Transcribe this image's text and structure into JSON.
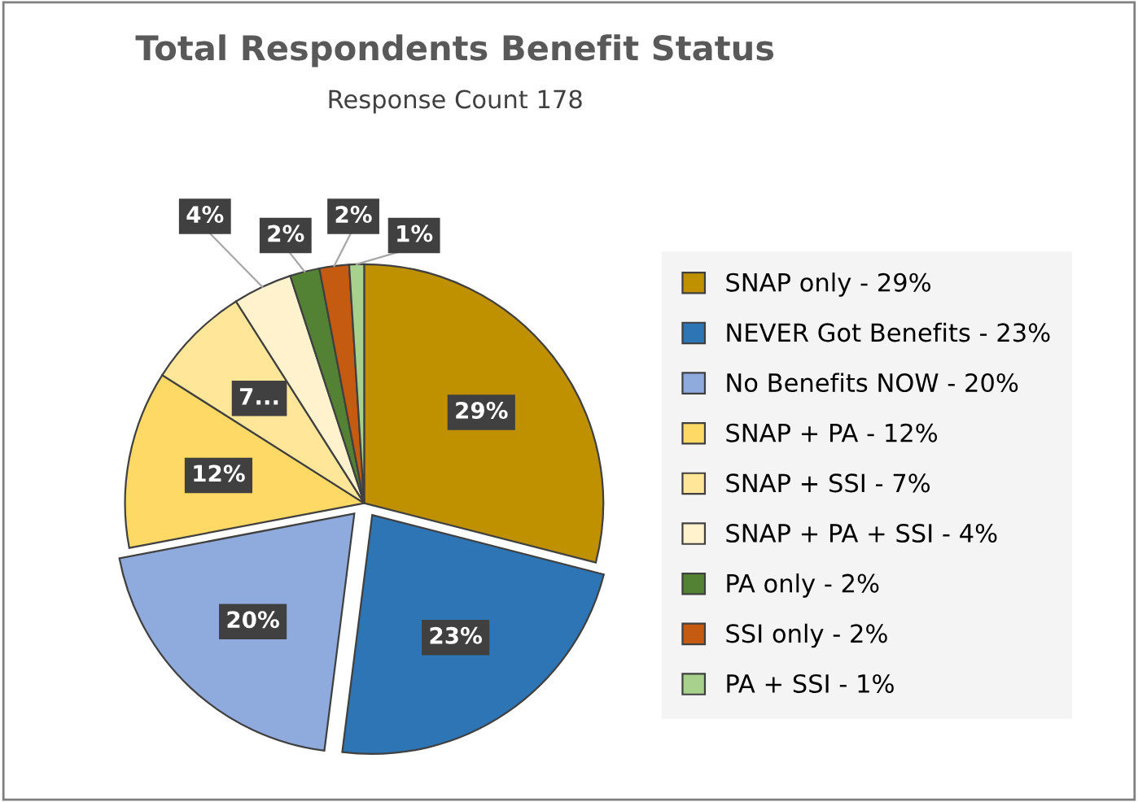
{
  "chart_data": {
    "type": "pie",
    "title": "Total Respondents Benefit Status",
    "subtitle": "Response Count 178",
    "categories": [
      "SNAP only - 29%",
      "NEVER Got Benefits - 23%",
      "No Benefits NOW - 20%",
      "SNAP + PA - 12%",
      "SNAP + SSI - 7%",
      "SNAP + PA + SSI - 4%",
      "PA only - 2%",
      "SSI only - 2%",
      "PA + SSI - 1%"
    ],
    "values": [
      29,
      23,
      20,
      12,
      7,
      4,
      2,
      2,
      1
    ],
    "colors": [
      "#bf9000",
      "#2e75b6",
      "#8faadc",
      "#ffd966",
      "#ffe699",
      "#fff2cc",
      "#548235",
      "#c55a11",
      "#a9d18e"
    ],
    "value_labels": [
      "29%",
      "23%",
      "20%",
      "12%",
      "7...",
      "4%",
      "2%",
      "2%",
      "1%"
    ],
    "legend": "right"
  }
}
